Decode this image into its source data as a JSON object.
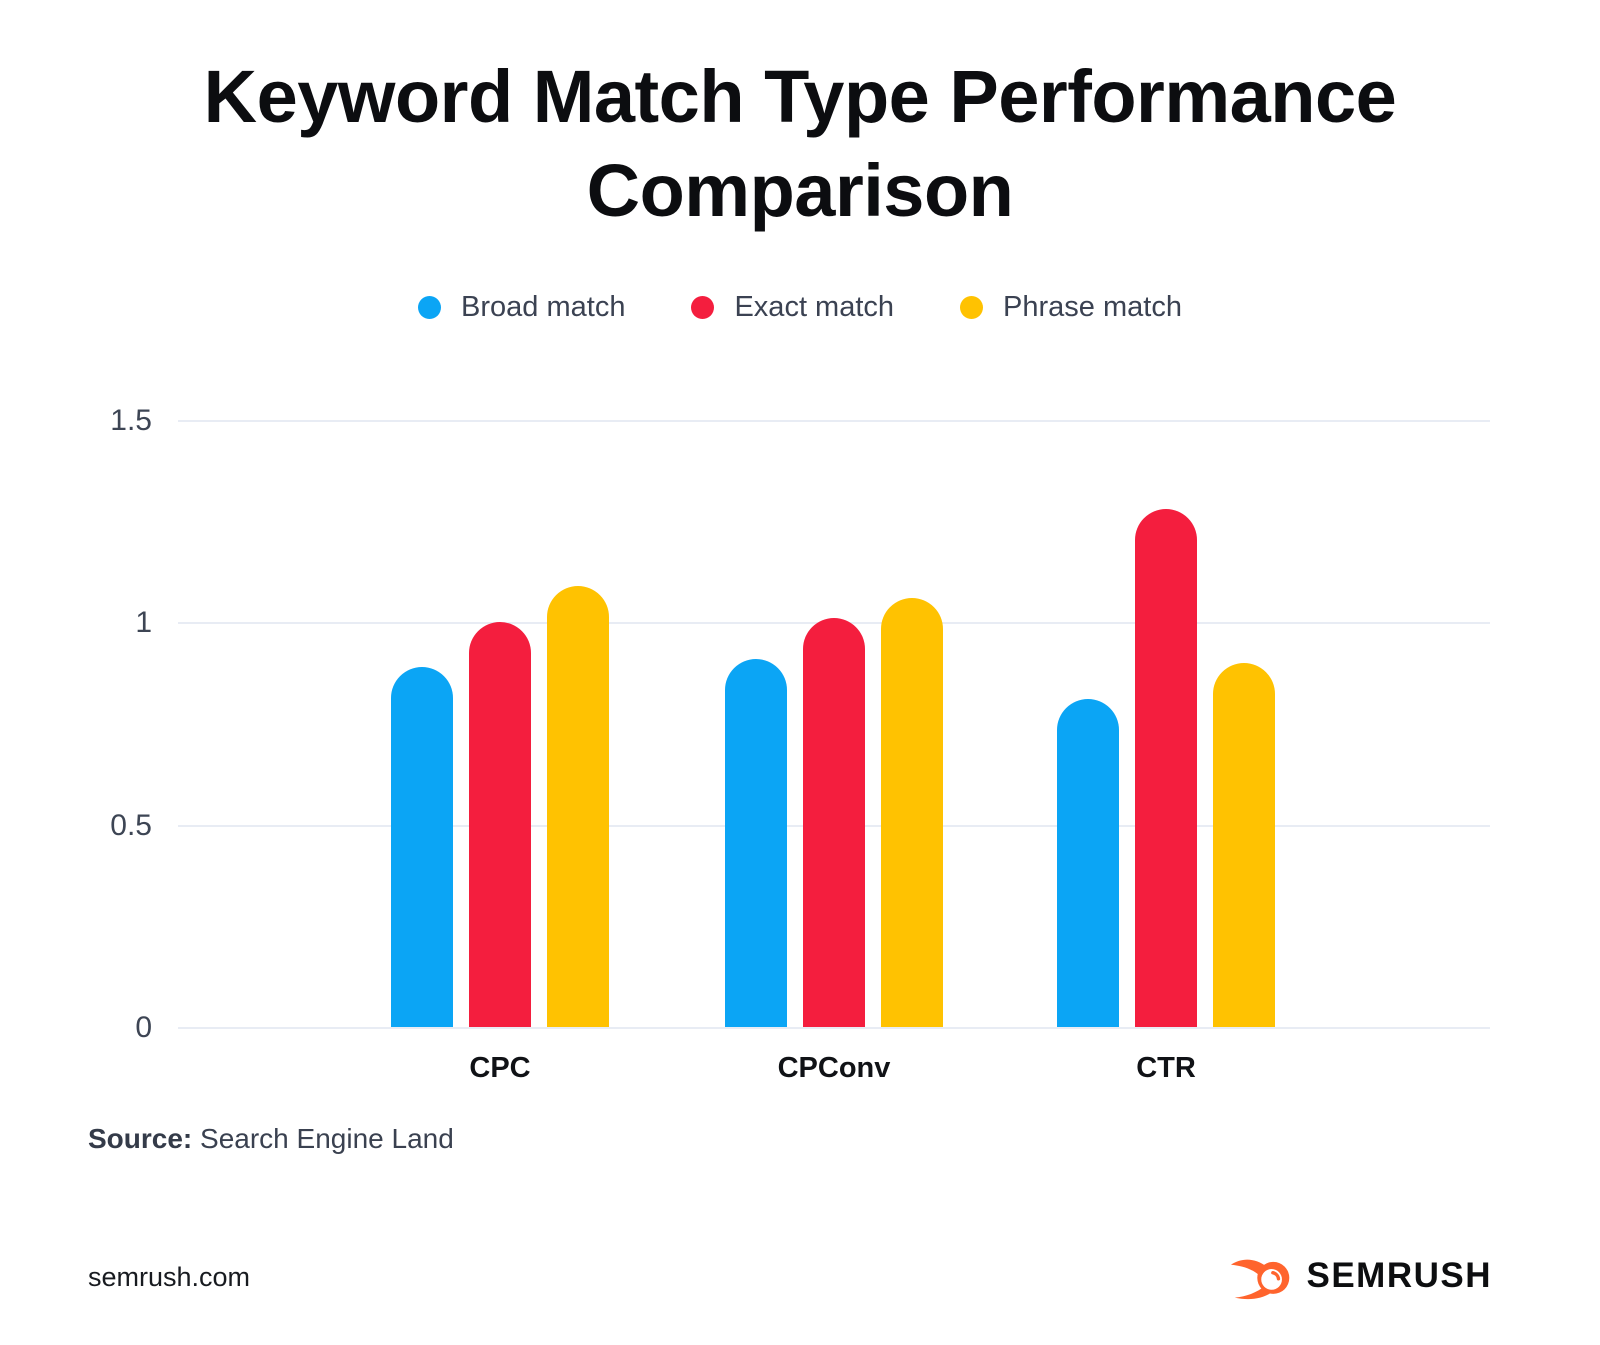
{
  "title": {
    "line1": "Keyword Match Type Performance",
    "line2": "Comparison"
  },
  "chart_data": {
    "type": "bar",
    "title": "Keyword Match Type Performance Comparison",
    "categories": [
      "CPC",
      "CPConv",
      "CTR"
    ],
    "series": [
      {
        "name": "Broad match",
        "color": "#0ba5f5",
        "values": [
          0.89,
          0.91,
          0.81
        ]
      },
      {
        "name": "Exact match",
        "color": "#f41e3e",
        "values": [
          1.0,
          1.01,
          1.28
        ]
      },
      {
        "name": "Phrase match",
        "color": "#ffc201",
        "values": [
          1.09,
          1.06,
          0.9
        ]
      }
    ],
    "xlabel": "",
    "ylabel": "",
    "ylim": [
      0,
      1.5
    ],
    "yticks": [
      0,
      0.5,
      1,
      1.5
    ],
    "grid": true,
    "legend_position": "top"
  },
  "source": {
    "label": "Source:",
    "value": "Search Engine Land"
  },
  "footer": {
    "site": "semrush.com",
    "brand": "SEMRUSH"
  },
  "colors": {
    "brand_orange": "#ff642d",
    "gridline": "#e8ecf4",
    "axis_text": "#3d4554",
    "legend_text": "#3b4252",
    "title_text": "#0c0d10"
  }
}
